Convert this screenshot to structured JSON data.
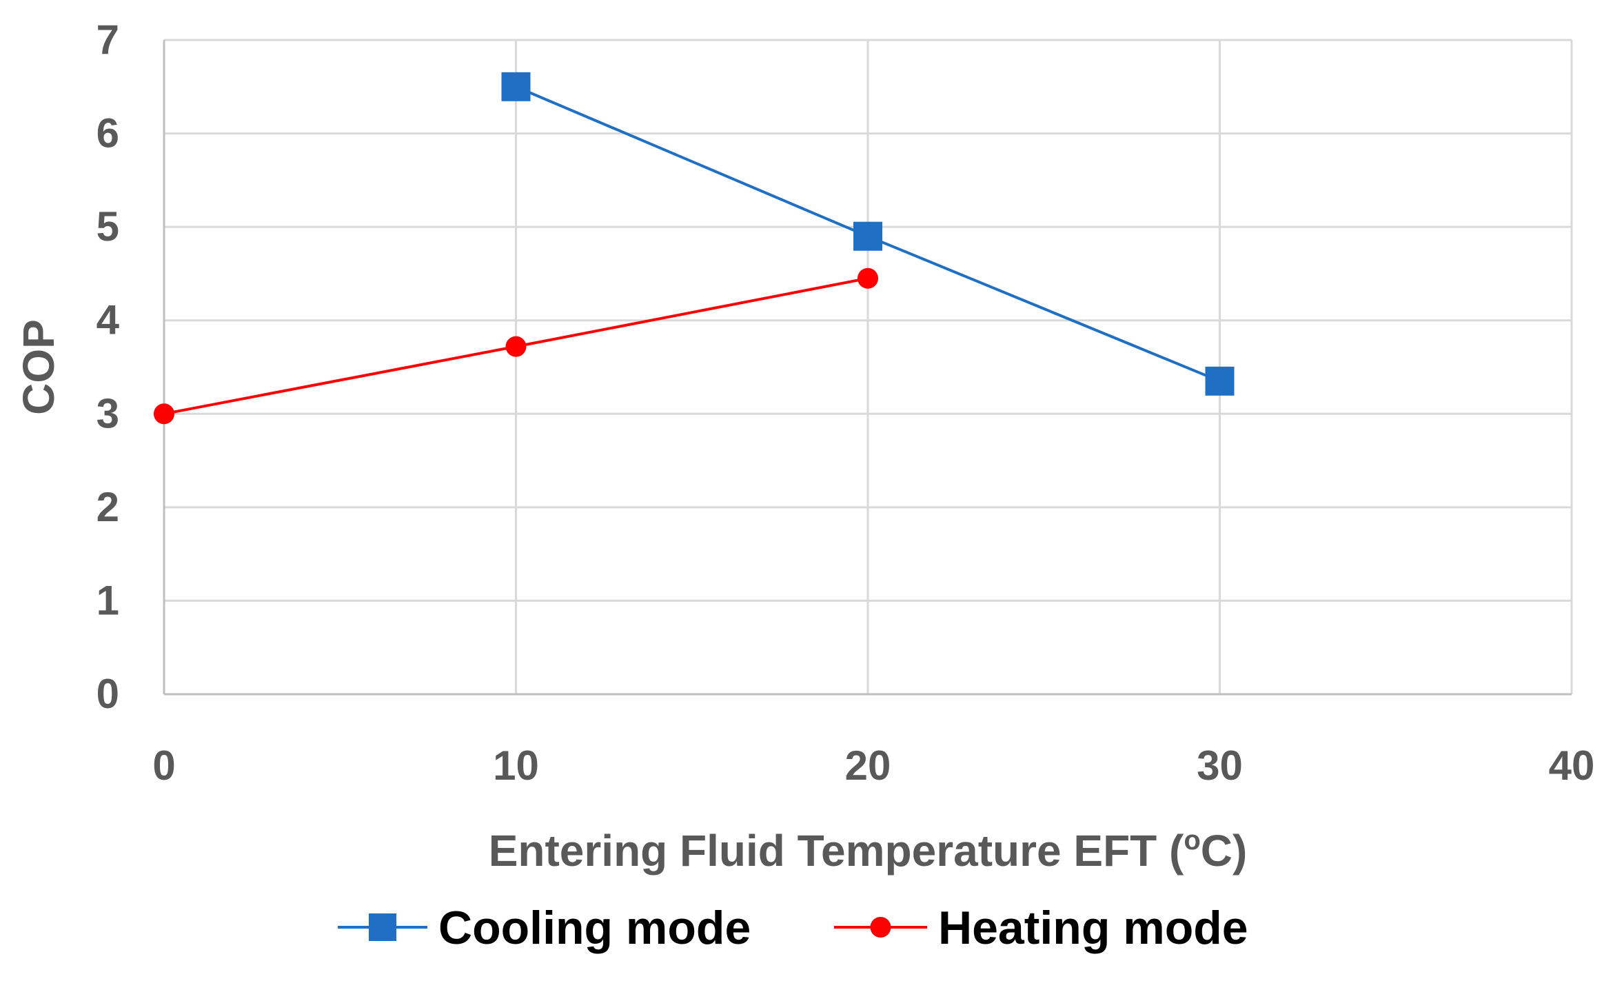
{
  "chart_data": {
    "type": "line",
    "title": "",
    "xlabel": "Entering Fluid Temperature EFT (",
    "xlabel_superscript": "o",
    "xlabel_suffix": "C)",
    "ylabel": "COP",
    "xlim": [
      0,
      40
    ],
    "ylim": [
      0,
      7
    ],
    "xticks": [
      "0",
      "10",
      "20",
      "30",
      "40"
    ],
    "yticks": [
      "0",
      "1",
      "2",
      "3",
      "4",
      "5",
      "6",
      "7"
    ],
    "grid": true,
    "legend_position": "bottom-center",
    "series": [
      {
        "name": "Cooling mode",
        "marker": "square",
        "color": "#1f6fc5",
        "points": [
          {
            "x": 10,
            "y": 6.5
          },
          {
            "x": 20,
            "y": 4.9
          },
          {
            "x": 30,
            "y": 3.35
          }
        ]
      },
      {
        "name": "Heating mode",
        "marker": "circle",
        "color": "#ff0000",
        "points": [
          {
            "x": 0,
            "y": 3.0
          },
          {
            "x": 10,
            "y": 3.72
          },
          {
            "x": 20,
            "y": 4.45
          }
        ]
      }
    ]
  }
}
